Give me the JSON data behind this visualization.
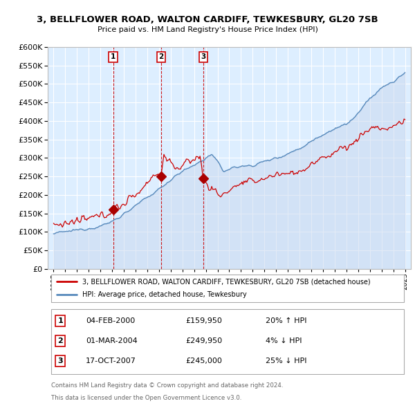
{
  "title": "3, BELLFLOWER ROAD, WALTON CARDIFF, TEWKESBURY, GL20 7SB",
  "subtitle": "Price paid vs. HM Land Registry's House Price Index (HPI)",
  "legend_line1": "3, BELLFLOWER ROAD, WALTON CARDIFF, TEWKESBURY, GL20 7SB (detached house)",
  "legend_line2": "HPI: Average price, detached house, Tewkesbury",
  "footer1": "Contains HM Land Registry data © Crown copyright and database right 2024.",
  "footer2": "This data is licensed under the Open Government Licence v3.0.",
  "sale_events": [
    {
      "num": 1,
      "date": "04-FEB-2000",
      "price": "£159,950",
      "hpi_rel": "20% ↑ HPI",
      "year": 2000.09
    },
    {
      "num": 2,
      "date": "01-MAR-2004",
      "price": "£249,950",
      "hpi_rel": "4% ↓ HPI",
      "year": 2004.17
    },
    {
      "num": 3,
      "date": "17-OCT-2007",
      "price": "£245,000",
      "hpi_rel": "25% ↓ HPI",
      "year": 2007.79
    }
  ],
  "red_line_color": "#cc0000",
  "blue_line_color": "#5588bb",
  "blue_fill_color": "#c8d8ee",
  "sale_marker_color": "#aa0000",
  "vline_color": "#cc0000",
  "plot_bg": "#ddeeff",
  "grid_color": "#ffffff",
  "ylim": [
    0,
    600000
  ],
  "yticks": [
    0,
    50000,
    100000,
    150000,
    200000,
    250000,
    300000,
    350000,
    400000,
    450000,
    500000,
    550000,
    600000
  ],
  "ytick_labels": [
    "£0",
    "£50K",
    "£100K",
    "£150K",
    "£200K",
    "£250K",
    "£300K",
    "£350K",
    "£400K",
    "£450K",
    "£500K",
    "£550K",
    "£600K"
  ],
  "xlim_start": 1994.5,
  "xlim_end": 2025.5
}
